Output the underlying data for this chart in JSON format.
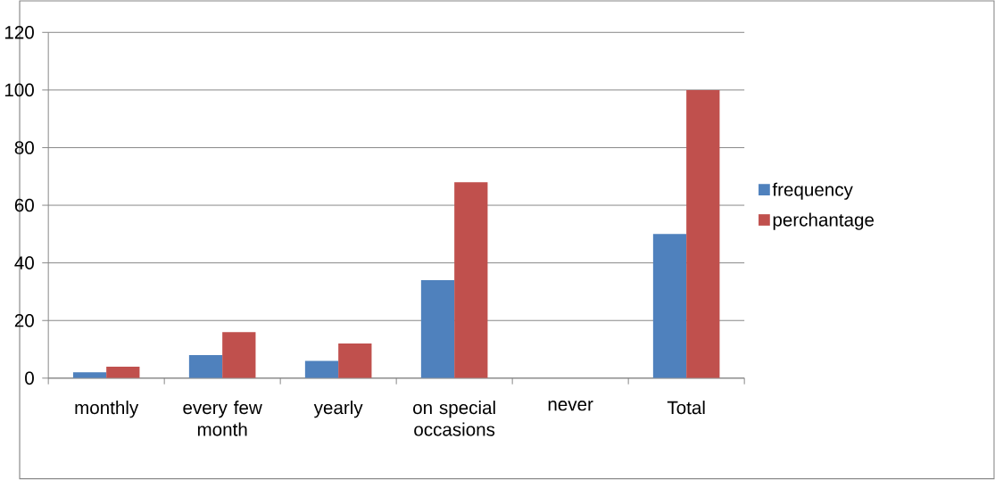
{
  "chart_data": {
    "type": "bar",
    "categories": [
      "monthly",
      "every few month",
      "yearly",
      "on special occasions",
      "never",
      "Total"
    ],
    "series": [
      {
        "name": "frequency",
        "color": "#4f81bd",
        "values": [
          2,
          8,
          6,
          34,
          0,
          50
        ]
      },
      {
        "name": "perchantage",
        "color": "#c0504d",
        "values": [
          4,
          16,
          12,
          68,
          0,
          100
        ]
      }
    ],
    "ylim": [
      0,
      120
    ],
    "yticks": [
      0,
      20,
      40,
      60,
      80,
      100,
      120
    ],
    "grid": "y",
    "legend": "right"
  }
}
